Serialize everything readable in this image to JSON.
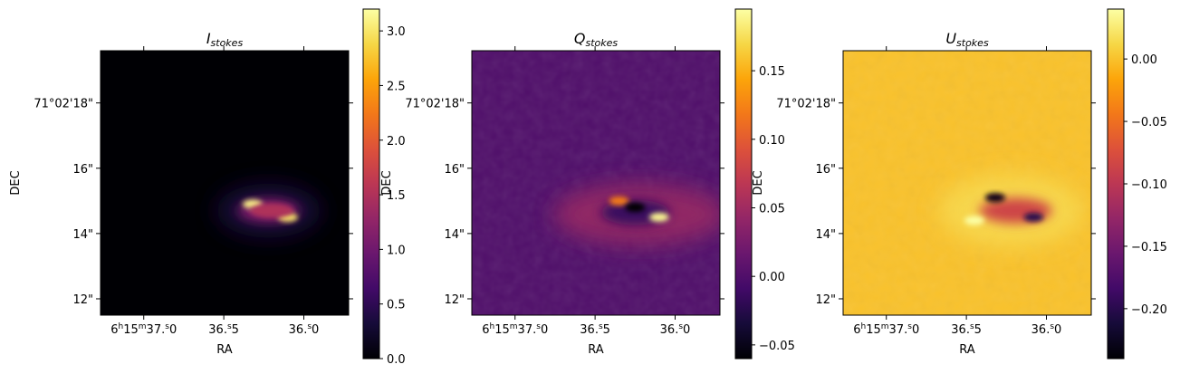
{
  "chart_data": [
    {
      "type": "heatmap",
      "title": "I",
      "title_subscript": "stokes",
      "xlabel": "RA",
      "ylabel": "DEC",
      "x_ticks": [
        {
          "h": "6",
          "m": "15",
          "s": "37.0",
          "full": true
        },
        {
          "s": "36.5",
          "full": false
        },
        {
          "s": "36.0",
          "full": false
        }
      ],
      "y_ticks": [
        "71°02'18\"",
        "16\"",
        "14\"",
        "12\""
      ],
      "y_tick_arcsec": [
        18,
        16,
        14,
        12
      ],
      "ylim_arcsec": [
        11.5,
        19.6
      ],
      "colormap": "inferno",
      "colorbar": {
        "min": 0.0,
        "max": 3.2,
        "ticks": [
          "0.0",
          "0.5",
          "1.0",
          "1.5",
          "2.0",
          "2.5",
          "3.0"
        ],
        "tick_values": [
          0,
          0.5,
          1.0,
          1.5,
          2.0,
          2.5,
          3.0
        ]
      },
      "background_value": 0.0,
      "features": [
        {
          "label": "emission peak 1",
          "ra_s": 36.32,
          "dec_arcsec": 14.9,
          "value": 3.1
        },
        {
          "label": "emission peak 2",
          "ra_s": 36.1,
          "dec_arcsec": 14.5,
          "value": 3.0
        },
        {
          "label": "emission body",
          "ra_s": 36.2,
          "dec_arcsec": 14.7,
          "value": 1.5
        }
      ]
    },
    {
      "type": "heatmap",
      "title": "Q",
      "title_subscript": "stokes",
      "xlabel": "RA",
      "ylabel": "DEC",
      "x_ticks": [
        {
          "h": "6",
          "m": "15",
          "s": "37.0",
          "full": true
        },
        {
          "s": "36.5",
          "full": false
        },
        {
          "s": "36.0",
          "full": false
        }
      ],
      "y_ticks": [
        "71°02'18\"",
        "16\"",
        "14\"",
        "12\""
      ],
      "y_tick_arcsec": [
        18,
        16,
        14,
        12
      ],
      "ylim_arcsec": [
        11.5,
        19.6
      ],
      "colormap": "inferno",
      "colorbar": {
        "min": -0.06,
        "max": 0.195,
        "ticks": [
          "−0.05",
          "0.00",
          "0.05",
          "0.10",
          "0.15"
        ],
        "tick_values": [
          -0.05,
          0.0,
          0.05,
          0.1,
          0.15
        ]
      },
      "background_value": 0.0,
      "features": [
        {
          "label": "positive lobe",
          "ra_s": 36.1,
          "dec_arcsec": 14.5,
          "value": 0.19
        },
        {
          "label": "positive lobe 2",
          "ra_s": 36.35,
          "dec_arcsec": 15.0,
          "value": 0.12
        },
        {
          "label": "negative core",
          "ra_s": 36.25,
          "dec_arcsec": 14.8,
          "value": -0.06
        }
      ]
    },
    {
      "type": "heatmap",
      "title": "U",
      "title_subscript": "stokes",
      "xlabel": "RA",
      "ylabel": "DEC",
      "x_ticks": [
        {
          "h": "6",
          "m": "15",
          "s": "37.0",
          "full": true
        },
        {
          "s": "36.5",
          "full": false
        },
        {
          "s": "36.0",
          "full": false
        }
      ],
      "y_ticks": [
        "71°02'18\"",
        "16\"",
        "14\"",
        "12\""
      ],
      "y_tick_arcsec": [
        18,
        16,
        14,
        12
      ],
      "ylim_arcsec": [
        11.5,
        19.6
      ],
      "colormap": "inferno",
      "colorbar": {
        "min": -0.24,
        "max": 0.04,
        "ticks": [
          "−0.20",
          "−0.15",
          "−0.10",
          "−0.05",
          "0.00"
        ],
        "tick_values": [
          -0.2,
          -0.15,
          -0.1,
          -0.05,
          0.0
        ]
      },
      "background_value": 0.0,
      "features": [
        {
          "label": "negative lobe 1",
          "ra_s": 36.32,
          "dec_arcsec": 15.1,
          "value": -0.23
        },
        {
          "label": "negative lobe 2",
          "ra_s": 36.08,
          "dec_arcsec": 14.5,
          "value": -0.2
        },
        {
          "label": "positive patch",
          "ra_s": 36.45,
          "dec_arcsec": 14.4,
          "value": 0.04
        }
      ]
    }
  ]
}
